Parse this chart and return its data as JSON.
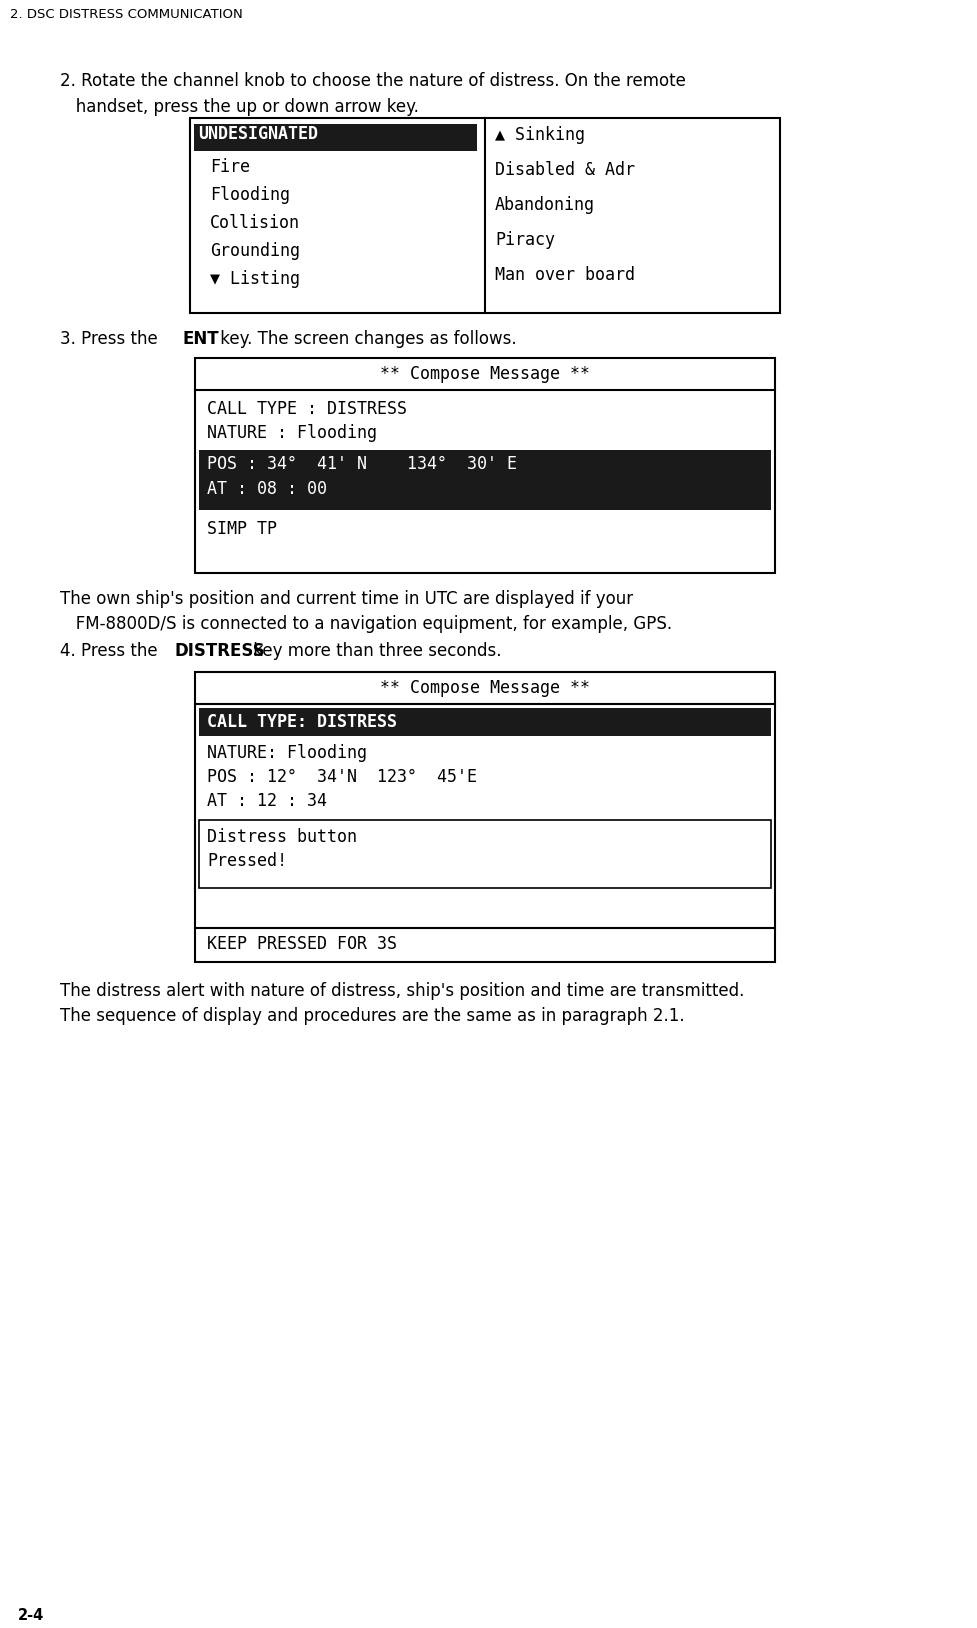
{
  "page_header": "2. DSC DISTRESS COMMUNICATION",
  "page_number": "2-4",
  "bg_color": "#ffffff",
  "text_color": "#000000",
  "highlight_bg": "#1a1a1a",
  "highlight_fg": "#ffffff",
  "step2_text_line1": "2. Rotate the channel knob to choose the nature of distress. On the remote",
  "step2_text_line2": "   handset, press the up or down arrow key.",
  "menu_left_col": [
    "UNDESIGNATED",
    "Fire",
    "Flooding",
    "Collision",
    "Grounding",
    "▼ Listing"
  ],
  "menu_right_col": [
    "▲ Sinking",
    "Disabled & Adr",
    "Abandoning",
    "Piracy",
    "Man over board"
  ],
  "compose1_header": "** Compose Message **",
  "compose1_lines": [
    "CALL TYPE : DISTRESS",
    "NATURE : Flooding"
  ],
  "compose1_highlighted": [
    "POS : 34°  41' N    134°  30' E",
    "AT : 08 : 00"
  ],
  "compose1_footer": "SIMP TP",
  "note_line1": "The own ship's position and current time in UTC are displayed if your",
  "note_line2": "   FM-8800D/S is connected to a navigation equipment, for example, GPS.",
  "step4_text_pre": "4. Press the ",
  "step4_text_bold": "DISTRESS",
  "step4_text_post": " key more than three seconds.",
  "compose2_header": "** Compose Message **",
  "compose2_calltype": "CALL TYPE: DISTRESS",
  "compose2_lines": [
    "NATURE: Flooding",
    "POS : 12°  34'N  123°  45'E",
    "AT : 12 : 34"
  ],
  "compose2_box_lines": [
    "Distress button",
    "Pressed!"
  ],
  "compose2_footer": "KEEP PRESSED FOR 3S",
  "final_line1": "The distress alert with nature of distress, ship's position and time are transmitted.",
  "final_line2": "The sequence of display and procedures are the same as in paragraph 2.1."
}
